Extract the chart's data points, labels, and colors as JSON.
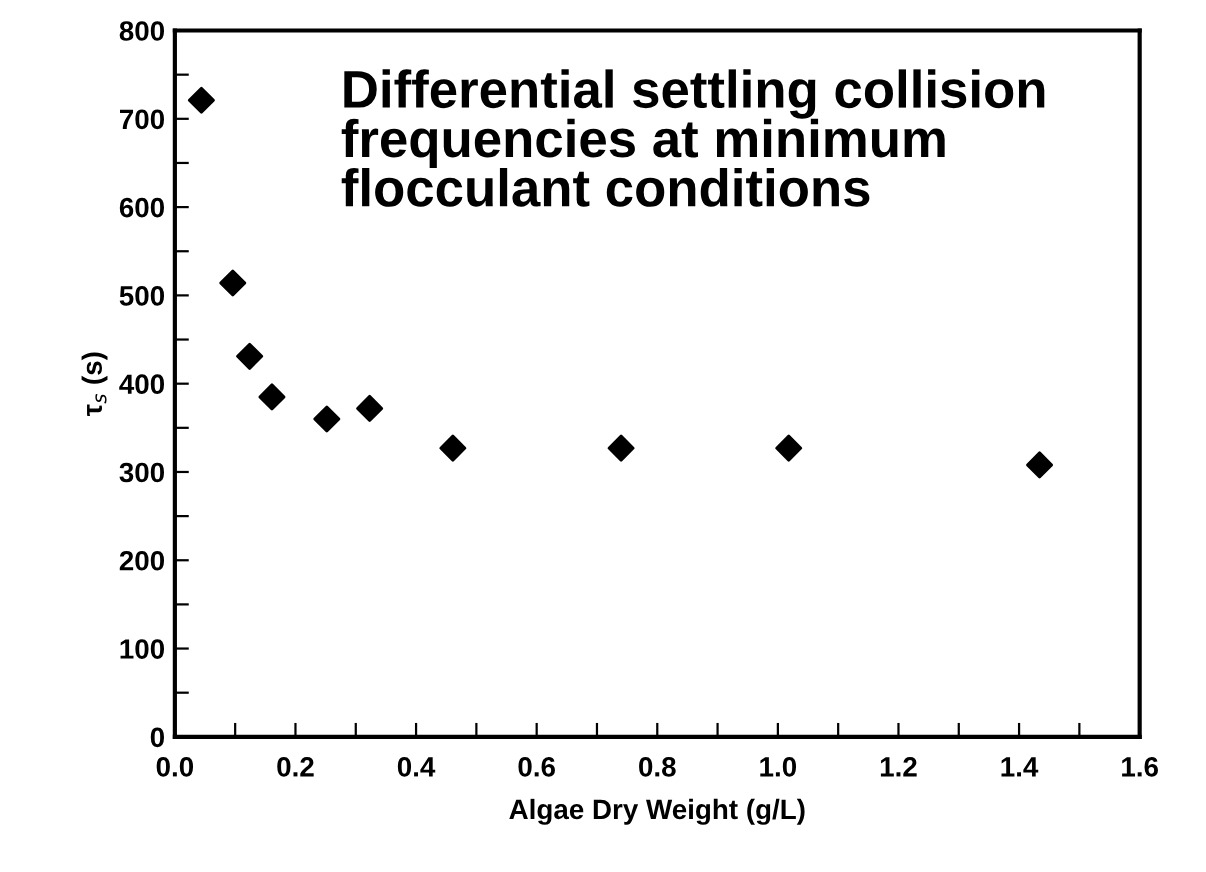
{
  "chart_data": {
    "type": "scatter",
    "xlabel": "Algae Dry Weight (g/L)",
    "ylabel": "τ$_{s}$ (s)",
    "annotations": [
      "Differential settling collision frequencies at minimum flocculant conditions"
    ],
    "x": [
      0.044,
      0.096,
      0.124,
      0.161,
      0.252,
      0.323,
      0.461,
      0.74,
      1.018,
      1.434
    ],
    "series": [
      {
        "color": "#000000",
        "values": [
          721,
          514,
          431,
          385,
          360,
          372,
          327,
          327,
          327,
          308
        ]
      }
    ],
    "marker": "diamond",
    "xlim": [
      0,
      1.6
    ],
    "ylim": [
      0,
      800
    ],
    "xticks": [
      {
        "value": 0,
        "label": "0.0"
      },
      {
        "value": 0.1,
        "label": null
      },
      {
        "value": 0.2,
        "label": "0.2"
      },
      {
        "value": 0.3,
        "label": null
      },
      {
        "value": 0.4,
        "label": "0.4"
      },
      {
        "value": 0.5,
        "label": null
      },
      {
        "value": 0.6,
        "label": "0.6"
      },
      {
        "value": 0.7,
        "label": null
      },
      {
        "value": 0.8,
        "label": "0.8"
      },
      {
        "value": 0.9,
        "label": null
      },
      {
        "value": 1.0,
        "label": "1.0"
      },
      {
        "value": 1.1,
        "label": null
      },
      {
        "value": 1.2,
        "label": "1.2"
      },
      {
        "value": 1.3,
        "label": null
      },
      {
        "value": 1.4,
        "label": "1.4"
      },
      {
        "value": 1.5,
        "label": null
      },
      {
        "value": 1.6,
        "label": "1.6"
      }
    ],
    "yticks": [
      0,
      {
        "value": 50,
        "label": null
      },
      100,
      {
        "value": 150,
        "label": null
      },
      200,
      {
        "value": 250,
        "label": null
      },
      300,
      {
        "value": 350,
        "label": null
      },
      400,
      {
        "value": 450,
        "label": null
      },
      500,
      {
        "value": 550,
        "label": null
      },
      600,
      {
        "value": 650,
        "label": null
      },
      700,
      {
        "value": 750,
        "label": null
      },
      800
    ],
    "grid": false,
    "legend": false
  }
}
